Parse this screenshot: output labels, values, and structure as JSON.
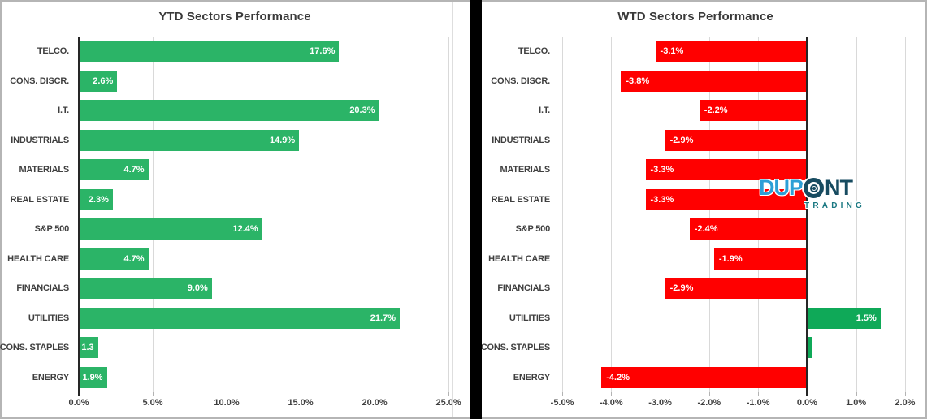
{
  "frame": {
    "background": "#ffffff",
    "border_color": "#b5b5b5",
    "divider_color": "#000000"
  },
  "chart_data": [
    {
      "type": "bar",
      "orientation": "horizontal",
      "title": "YTD Sectors Performance",
      "categories": [
        "TELCO.",
        "CONS. DISCR.",
        "I.T.",
        "INDUSTRIALS",
        "MATERIALS",
        "REAL ESTATE",
        "S&P 500",
        "HEALTH CARE",
        "FINANCIALS",
        "UTILITIES",
        "CONS. STAPLES",
        "ENERGY"
      ],
      "values": [
        17.6,
        2.6,
        20.3,
        14.9,
        4.7,
        2.3,
        12.4,
        4.7,
        9.0,
        21.7,
        1.3,
        1.9
      ],
      "value_labels": [
        "17.6%",
        "2.6%",
        "20.3%",
        "14.9%",
        "4.7%",
        "2.3%",
        "12.4%",
        "4.7%",
        "9.0%",
        "21.7%",
        "1.3",
        "1.9%"
      ],
      "xlabel": "",
      "ylabel": "",
      "grid": true,
      "legend": false,
      "axis": {
        "min": 0,
        "max": 25.6,
        "ticks": [
          0,
          5,
          10,
          15,
          20,
          25
        ],
        "tick_labels": [
          "0.0%",
          "5.0%",
          "10.0%",
          "15.0%",
          "20.0%",
          "25.0%"
        ]
      },
      "colors": {
        "positive": "#2bb467",
        "negative": "#ff0000",
        "value_label": "#ffffff"
      }
    },
    {
      "type": "bar",
      "orientation": "horizontal",
      "title": "WTD Sectors Performance",
      "categories": [
        "TELCO.",
        "CONS. DISCR.",
        "I.T.",
        "INDUSTRIALS",
        "MATERIALS",
        "REAL ESTATE",
        "S&P 500",
        "HEALTH CARE",
        "FINANCIALS",
        "UTILITIES",
        "CONS. STAPLES",
        "ENERGY"
      ],
      "values": [
        -3.1,
        -3.8,
        -2.2,
        -2.9,
        -3.3,
        -3.3,
        -2.4,
        -1.9,
        -2.9,
        1.5,
        0.1,
        -4.2
      ],
      "value_labels": [
        "-3.1%",
        "-3.8%",
        "-2.2%",
        "-2.9%",
        "-3.3%",
        "-3.3%",
        "-2.4%",
        "-1.9%",
        "-2.9%",
        "1.5%",
        "",
        "-4.2%"
      ],
      "xlabel": "",
      "ylabel": "",
      "grid": true,
      "legend": false,
      "axis": {
        "min": -5.15,
        "max": 2.2,
        "ticks": [
          -5,
          -4,
          -3,
          -2,
          -1,
          0,
          1,
          2
        ],
        "tick_labels": [
          "-5.0%",
          "-4.0%",
          "-3.0%",
          "-2.0%",
          "-1.0%",
          "0.0%",
          "1.0%",
          "2.0%"
        ]
      },
      "colors": {
        "positive": "#0fa958",
        "negative": "#ff0000",
        "value_label": "#ffffff"
      }
    }
  ],
  "logo": {
    "text_blue": "DUP",
    "text_dark": "NT",
    "subtext": "TRADING",
    "colors": {
      "blue": "#2d9fd6",
      "dark": "#174b60",
      "teal": "#1a7882"
    }
  }
}
